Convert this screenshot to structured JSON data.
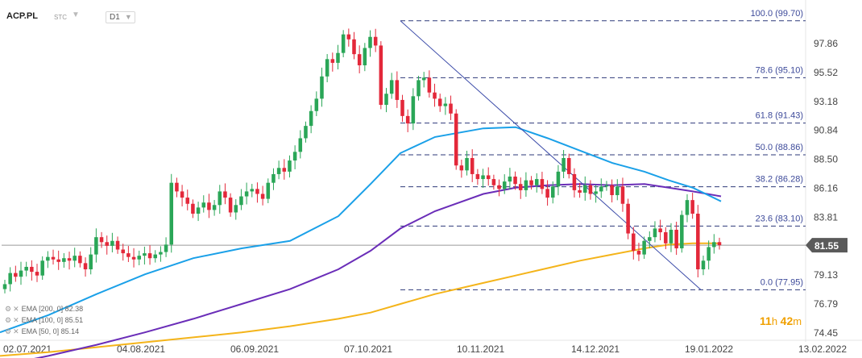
{
  "header": {
    "symbol": "ACP.PL",
    "type": "STC",
    "timeframe": "D1"
  },
  "indicators": [
    {
      "label": "EMA [200, 0] 82.38",
      "color": "#f4b41a",
      "period": 200
    },
    {
      "label": "EMA [100, 0] 85.51",
      "color": "#6a2db8",
      "period": 100
    },
    {
      "label": "EMA [50, 0] 85.14",
      "color": "#1aa0e8",
      "period": 50
    }
  ],
  "timer": {
    "hours": "11",
    "h": "h",
    "minutes": "42",
    "m": "m"
  },
  "colors": {
    "bull": "#2aa657",
    "bear": "#e3283a",
    "ema200": "#f4b41a",
    "ema100": "#6a2db8",
    "ema50": "#1aa0e8",
    "fib": "#2e3a7a",
    "trend": "#3a4aa8"
  },
  "chart_data": {
    "type": "candlestick",
    "symbol": "ACP.PL",
    "timeframe": "D1",
    "yaxis_ticks": [
      97.86,
      95.52,
      93.18,
      90.84,
      88.5,
      86.16,
      83.81,
      81.47,
      79.13,
      76.79,
      74.45
    ],
    "ylim": [
      74.45,
      99.8
    ],
    "current_price": 81.55,
    "xaxis_ticks": [
      "02.07.2021",
      "04.08.2021",
      "06.09.2021",
      "07.10.2021",
      "10.11.2021",
      "14.12.2021",
      "19.01.2022",
      "13.02.2022"
    ],
    "fibonacci": [
      {
        "level": "100.0",
        "value": 99.7
      },
      {
        "level": "78.6",
        "value": 95.1
      },
      {
        "level": "61.8",
        "value": 91.43
      },
      {
        "level": "50.0",
        "value": 88.86
      },
      {
        "level": "38.2",
        "value": 86.28
      },
      {
        "level": "23.6",
        "value": 83.1
      },
      {
        "level": "0.0",
        "value": 77.95
      }
    ],
    "trendline": {
      "from": 99.7,
      "to": 77.95
    },
    "ema": {
      "ema200": 82.38,
      "ema100": 85.51,
      "ema50": 85.14
    },
    "close_path": [
      78.4,
      79.3,
      79.0,
      79.5,
      79.8,
      79.4,
      79.1,
      80.3,
      80.6,
      80.4,
      80.2,
      80.5,
      80.3,
      80.7,
      80.1,
      79.6,
      80.8,
      82.2,
      81.8,
      81.5,
      81.9,
      81.2,
      80.9,
      80.6,
      80.4,
      80.7,
      80.9,
      80.5,
      80.8,
      81.0,
      81.6,
      86.6,
      85.9,
      85.4,
      84.9,
      84.1,
      84.6,
      85.0,
      84.4,
      84.8,
      85.9,
      85.4,
      84.2,
      84.8,
      85.5,
      85.9,
      86.1,
      85.7,
      85.3,
      86.6,
      87.3,
      87.8,
      87.5,
      88.4,
      89.1,
      90.2,
      91.2,
      92.4,
      93.4,
      95.2,
      96.6,
      96.3,
      97.1,
      98.6,
      98.2,
      97.0,
      96.1,
      97.5,
      98.4,
      97.7,
      92.9,
      93.8,
      94.9,
      93.3,
      92.0,
      91.4,
      93.6,
      94.9,
      95.1,
      93.9,
      93.4,
      92.8,
      93.0,
      92.2,
      88.0,
      87.6,
      88.6,
      87.3,
      86.9,
      87.2,
      86.9,
      86.4,
      86.1,
      86.7,
      87.1,
      86.5,
      86.0,
      86.8,
      86.4,
      86.9,
      86.1,
      85.4,
      86.3,
      87.5,
      88.6,
      87.3,
      86.0,
      85.8,
      86.4,
      85.7,
      85.9,
      86.3,
      86.4,
      85.6,
      86.3,
      84.9,
      82.5,
      81.1,
      80.8,
      81.9,
      82.2,
      82.9,
      82.6,
      81.7,
      82.8,
      81.3,
      84.0,
      85.2,
      84.1,
      79.6,
      80.3,
      81.4,
      81.8,
      81.55
    ]
  }
}
